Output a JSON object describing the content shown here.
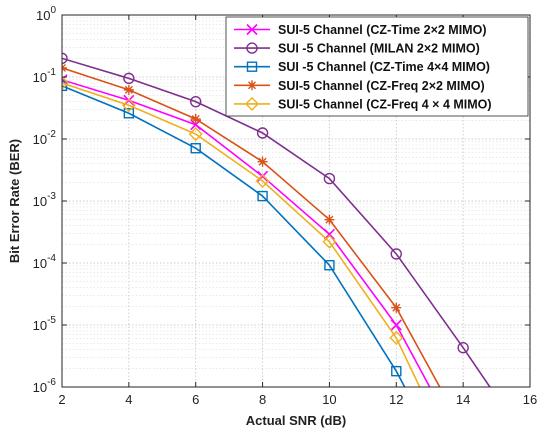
{
  "chart_data": {
    "type": "line",
    "xlabel": "Actual SNR (dB)",
    "ylabel": "Bit Error Rate (BER)",
    "xlim": [
      2,
      16
    ],
    "ylim": [
      1e-06,
      1
    ],
    "yscale": "log",
    "grid": true,
    "legend_position": "top-right",
    "x_ticks": [
      "2",
      "4",
      "6",
      "8",
      "10",
      "12",
      "14",
      "16"
    ],
    "y_ticks": [
      {
        "base": "10",
        "exp": "0"
      },
      {
        "base": "10",
        "exp": "-1"
      },
      {
        "base": "10",
        "exp": "-2"
      },
      {
        "base": "10",
        "exp": "-3"
      },
      {
        "base": "10",
        "exp": "-4"
      },
      {
        "base": "10",
        "exp": "-5"
      },
      {
        "base": "10",
        "exp": "-6"
      }
    ],
    "series": [
      {
        "name": "SUI-5 Channel (CZ-Time 2×2 MIMO)",
        "color": "#ff00ff",
        "marker": "x",
        "x": [
          2,
          4,
          6,
          8,
          10,
          12,
          13
        ],
        "y": [
          0.09,
          0.042,
          0.017,
          0.0025,
          0.00029,
          1e-05,
          1e-06
        ]
      },
      {
        "name": "SUI -5 Channel (MILAN 2×2 MIMO)",
        "color": "#7e2f8e",
        "marker": "circle",
        "x": [
          2,
          4,
          6,
          8,
          10,
          12,
          14,
          14.8
        ],
        "y": [
          0.2,
          0.095,
          0.04,
          0.0125,
          0.0023,
          0.00014,
          4.3e-06,
          1e-06
        ]
      },
      {
        "name": "SUI -5 Channel (CZ-Time 4×4 MIMO)",
        "color": "#0072bd",
        "marker": "square",
        "x": [
          2,
          4,
          6,
          8,
          10,
          12,
          12.25
        ],
        "y": [
          0.072,
          0.026,
          0.0071,
          0.0012,
          9.2e-05,
          1.8e-06,
          1e-06
        ]
      },
      {
        "name": "SUI-5 Channel (CZ-Freq 2×2 MIMO)",
        "color": "#d95319",
        "marker": "asterisk",
        "x": [
          2,
          4,
          6,
          8,
          10,
          12,
          13.3
        ],
        "y": [
          0.14,
          0.062,
          0.021,
          0.0043,
          0.0005,
          1.9e-05,
          1e-06
        ]
      },
      {
        "name": "SUI-5 Channel (CZ-Freq 4 × 4 MIMO)",
        "color": "#edb120",
        "marker": "diamond",
        "x": [
          2,
          4,
          6,
          8,
          10,
          12,
          12.7
        ],
        "y": [
          0.08,
          0.035,
          0.012,
          0.0021,
          0.00022,
          6.2e-06,
          1e-06
        ]
      }
    ]
  }
}
